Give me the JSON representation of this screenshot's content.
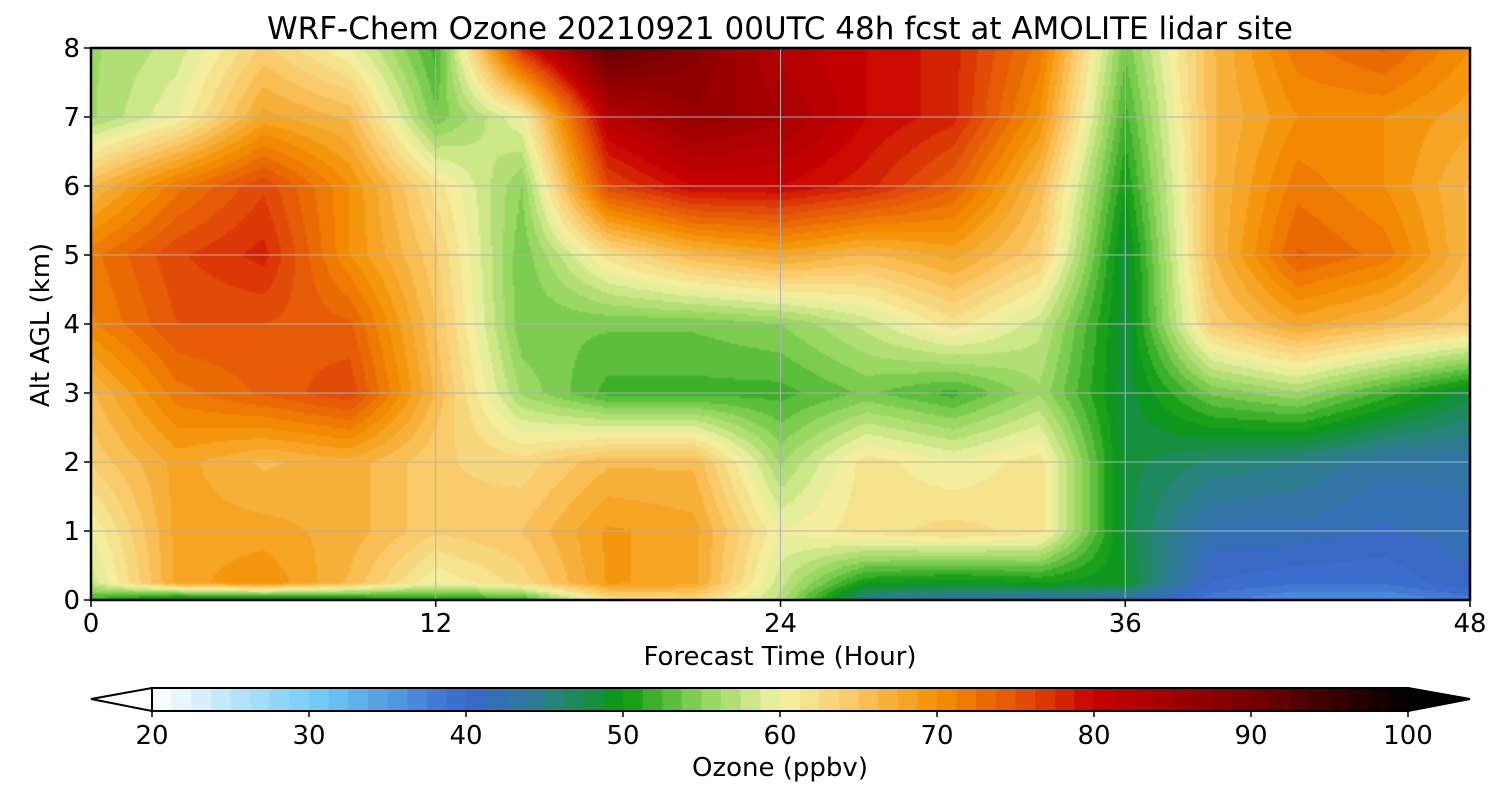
{
  "chart_data": {
    "type": "heatmap",
    "title": "WRF-Chem Ozone  20210921 00UTC 48h fcst at AMOLITE lidar site",
    "xlabel": "Forecast Time (Hour)",
    "ylabel": "Alt AGL (km)",
    "xlim": [
      0,
      48
    ],
    "ylim": [
      0,
      8
    ],
    "x_ticks": [
      "0",
      "12",
      "24",
      "36",
      "48"
    ],
    "y_ticks": [
      "0",
      "1",
      "2",
      "3",
      "4",
      "5",
      "6",
      "7",
      "8"
    ],
    "grid": true,
    "x": [
      0,
      3,
      6,
      9,
      12,
      15,
      18,
      21,
      24,
      27,
      30,
      33,
      36,
      39,
      42,
      45,
      48
    ],
    "y": [
      0,
      0.25,
      1,
      2,
      3,
      4,
      5,
      6,
      7,
      8
    ],
    "z": [
      [
        52,
        46,
        47,
        48,
        50,
        51,
        62,
        63,
        57,
        44,
        43,
        42,
        42,
        38,
        36,
        36,
        38
      ],
      [
        58,
        68,
        70,
        66,
        60,
        63,
        69,
        68,
        58,
        50,
        49,
        50,
        49,
        40,
        39,
        39,
        41
      ],
      [
        60,
        68,
        68,
        67,
        64,
        65,
        69,
        68,
        60,
        62,
        63,
        62,
        48,
        42,
        42,
        41,
        42
      ],
      [
        64,
        68,
        66,
        67,
        64,
        63,
        66,
        66,
        56,
        62,
        60,
        62,
        48,
        46,
        45,
        43,
        43
      ],
      [
        66,
        72,
        74,
        76,
        66,
        56,
        52,
        52,
        52,
        54,
        52,
        56,
        48,
        54,
        56,
        52,
        48
      ],
      [
        71,
        75,
        75,
        74,
        65,
        54,
        54,
        54,
        55,
        58,
        62,
        58,
        48,
        64,
        68,
        66,
        64
      ],
      [
        72,
        76,
        78,
        70,
        64,
        54,
        62,
        66,
        68,
        66,
        68,
        64,
        48,
        66,
        74,
        72,
        66
      ],
      [
        66,
        72,
        76,
        70,
        62,
        55,
        76,
        80,
        80,
        78,
        74,
        66,
        50,
        66,
        72,
        70,
        66
      ],
      [
        56,
        60,
        68,
        66,
        54,
        60,
        82,
        86,
        84,
        80,
        78,
        70,
        52,
        66,
        70,
        70,
        68
      ],
      [
        56,
        58,
        64,
        60,
        52,
        78,
        92,
        88,
        82,
        80,
        78,
        72,
        54,
        66,
        72,
        74,
        70
      ]
    ],
    "colorbar": {
      "label": "Ozone  (ppbv)",
      "min": 20,
      "max": 100,
      "ticks": [
        "20",
        "30",
        "40",
        "50",
        "60",
        "70",
        "80",
        "90",
        "100"
      ],
      "extend": "both",
      "stops": [
        [
          20,
          "#ffffff"
        ],
        [
          31,
          "#6cc8f4"
        ],
        [
          40,
          "#3a66cc"
        ],
        [
          45,
          "#2a7e8a"
        ],
        [
          50,
          "#0a9a10"
        ],
        [
          55,
          "#8cd458"
        ],
        [
          60,
          "#f2f2a4"
        ],
        [
          64,
          "#f9cf72"
        ],
        [
          70,
          "#f59100"
        ],
        [
          76,
          "#e04808"
        ],
        [
          80,
          "#c80000"
        ],
        [
          90,
          "#760000"
        ],
        [
          100,
          "#000000"
        ]
      ],
      "under_color": "#ffffff",
      "over_color": "#000000"
    }
  }
}
